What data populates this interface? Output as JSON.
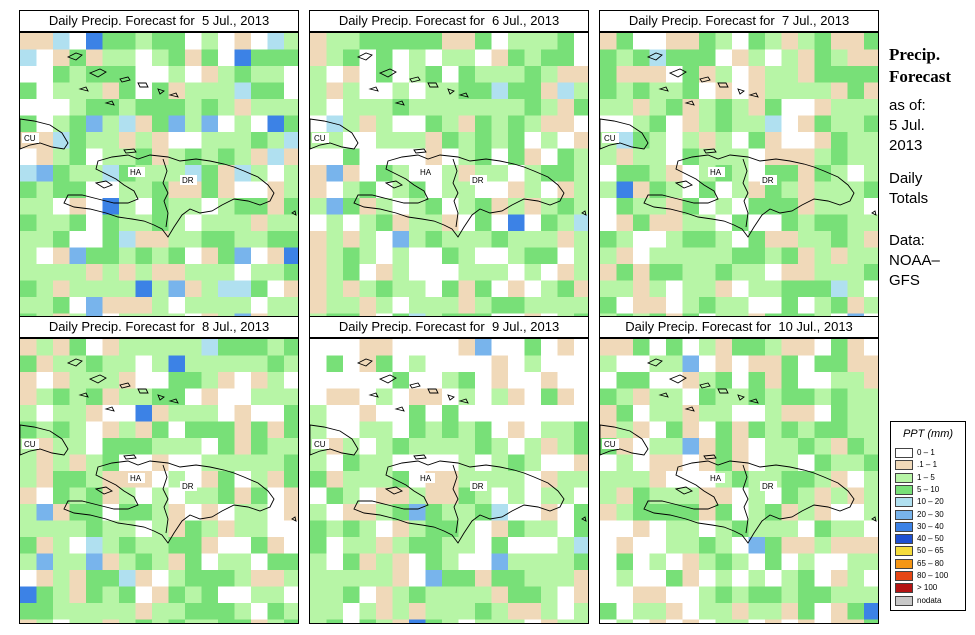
{
  "panels": [
    {
      "title": "Daily Precip. Forecast for  5 Jul., 2013",
      "seed": 11,
      "wet": 0.55,
      "blue": 0.14
    },
    {
      "title": "Daily Precip. Forecast for  6 Jul., 2013",
      "seed": 23,
      "wet": 0.45,
      "blue": 0.05
    },
    {
      "title": "Daily Precip. Forecast for  7 Jul., 2013",
      "seed": 37,
      "wet": 0.3,
      "blue": 0.03
    },
    {
      "title": "Daily Precip. Forecast for  8 Jul., 2013",
      "seed": 41,
      "wet": 0.4,
      "blue": 0.06
    },
    {
      "title": "Daily Precip. Forecast for  9 Jul., 2013",
      "seed": 53,
      "wet": 0.35,
      "blue": 0.04
    },
    {
      "title": "Daily Precip. Forecast for  10 Jul., 2013",
      "seed": 67,
      "wet": 0.22,
      "blue": 0.03
    }
  ],
  "map_labels": {
    "cuba": "CU",
    "haiti": "HA",
    "dominican_republic": "DR"
  },
  "side": {
    "title_line1": "Precip.",
    "title_line2": "Forecast",
    "asof_label": "as of:",
    "date_line1": "5 Jul.",
    "date_line2": "2013",
    "totals_line1": "Daily",
    "totals_line2": "Totals",
    "data_line1": "Data:",
    "data_line2": "NOAA–",
    "data_line3": "GFS"
  },
  "legend": {
    "title": "PPT (mm)",
    "bins": [
      {
        "label": "0 – 1",
        "color": "#ffffff"
      },
      {
        "label": ".1 – 1",
        "color": "#f0d9b9"
      },
      {
        "label": "1 – 5",
        "color": "#b7f5a6"
      },
      {
        "label": "5 – 10",
        "color": "#78e078"
      },
      {
        "label": "10 – 20",
        "color": "#b0e0f0"
      },
      {
        "label": "20 – 30",
        "color": "#78b4ec"
      },
      {
        "label": "30 – 40",
        "color": "#3c82e6"
      },
      {
        "label": "40 – 50",
        "color": "#1e50d2"
      },
      {
        "label": "50 – 65",
        "color": "#f5dc3c"
      },
      {
        "label": "65 – 80",
        "color": "#f59614"
      },
      {
        "label": "80 – 100",
        "color": "#e64614"
      },
      {
        "label": "> 100",
        "color": "#b41414"
      },
      {
        "label": "nodata",
        "color": "#c8c8c8"
      }
    ]
  }
}
